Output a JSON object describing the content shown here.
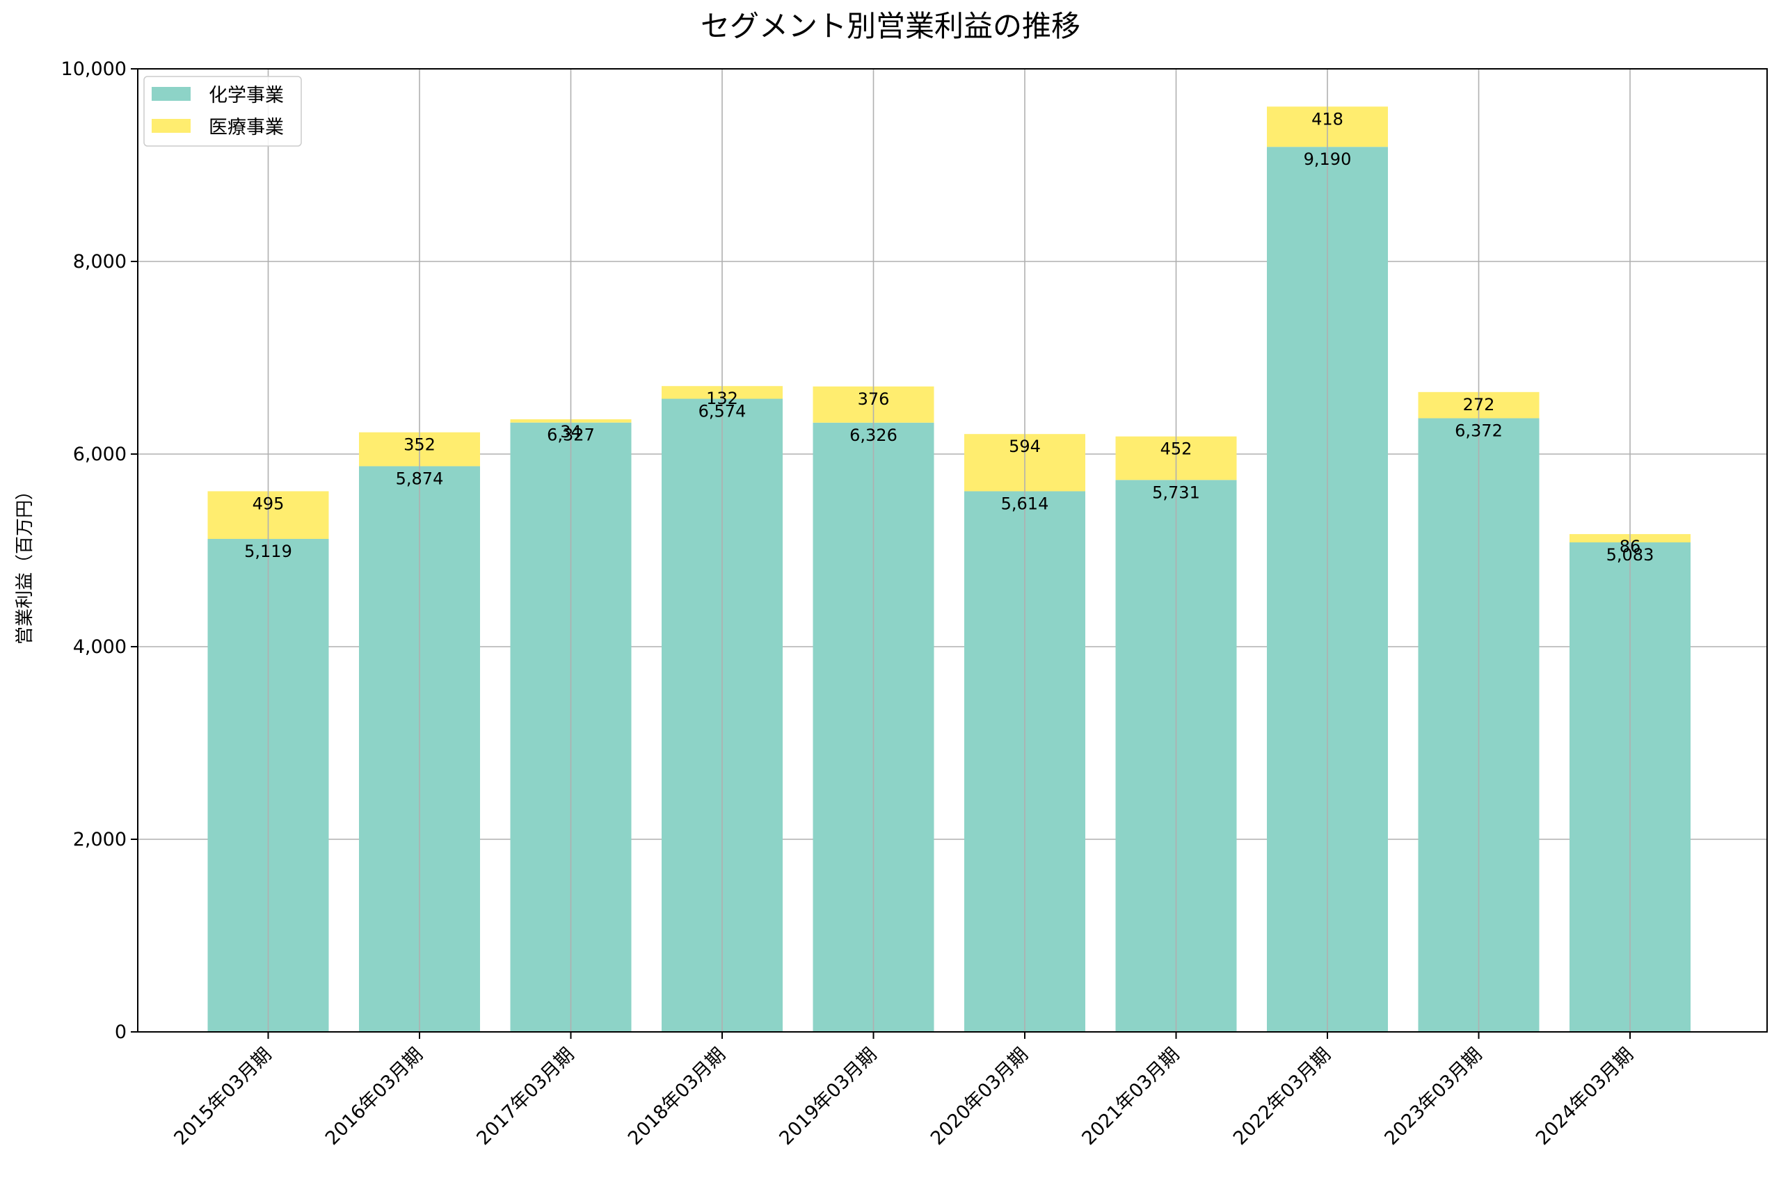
{
  "chart_data": {
    "type": "bar",
    "stacked": true,
    "title": "セグメント別営業利益の推移",
    "xlabel": "",
    "ylabel": "営業利益（百万円）",
    "ylim": [
      0,
      10000
    ],
    "yticks": [
      0,
      2000,
      4000,
      6000,
      8000,
      10000
    ],
    "ytick_labels": [
      "0",
      "2,000",
      "4,000",
      "6,000",
      "8,000",
      "10,000"
    ],
    "grid": true,
    "legend_position": "top-left",
    "categories": [
      "2015年03月期",
      "2016年03月期",
      "2017年03月期",
      "2018年03月期",
      "2019年03月期",
      "2020年03月期",
      "2021年03月期",
      "2022年03月期",
      "2023年03月期",
      "2024年03月期"
    ],
    "series": [
      {
        "name": "化学事業",
        "color": "#8dd3c7",
        "values": [
          5119,
          5874,
          6327,
          6574,
          6326,
          5614,
          5731,
          9190,
          6372,
          5083
        ],
        "labels": [
          "5,119",
          "5,874",
          "6,327",
          "6,574",
          "6,326",
          "5,614",
          "5,731",
          "9,190",
          "6,372",
          "5,083"
        ]
      },
      {
        "name": "医療事業",
        "color": "#ffed6f",
        "values": [
          495,
          352,
          34,
          132,
          376,
          594,
          452,
          418,
          272,
          86
        ],
        "labels": [
          "495",
          "352",
          "34",
          "132",
          "376",
          "594",
          "452",
          "418",
          "272",
          "86"
        ]
      }
    ]
  }
}
